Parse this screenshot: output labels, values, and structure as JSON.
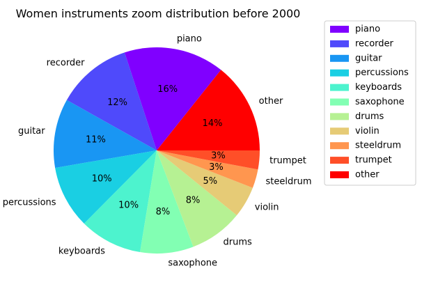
{
  "chart_data": {
    "type": "pie",
    "title": "Women instruments zoom distribution before 2000",
    "legend_position": "right",
    "start_angle_deg": 0,
    "direction": "counterclockwise",
    "slices": [
      {
        "label": "other",
        "pct_label": "14%",
        "value": 14.5,
        "color": "#ff0000"
      },
      {
        "label": "piano",
        "pct_label": "16%",
        "value": 16.0,
        "color": "#8000ff"
      },
      {
        "label": "recorder",
        "pct_label": "12%",
        "value": 12.0,
        "color": "#4f4afb"
      },
      {
        "label": "guitar",
        "pct_label": "11%",
        "value": 11.0,
        "color": "#1996f3"
      },
      {
        "label": "percussions",
        "pct_label": "10%",
        "value": 10.0,
        "color": "#1acfe3"
      },
      {
        "label": "keyboards",
        "pct_label": "10%",
        "value": 10.0,
        "color": "#4df3ce"
      },
      {
        "label": "saxophone",
        "pct_label": "8%",
        "value": 8.5,
        "color": "#82ffb3"
      },
      {
        "label": "drums",
        "pct_label": "8%",
        "value": 8.5,
        "color": "#b6f193"
      },
      {
        "label": "violin",
        "pct_label": "5%",
        "value": 5.0,
        "color": "#e6cb76"
      },
      {
        "label": "steeldrum",
        "pct_label": "3%",
        "value": 3.0,
        "color": "#ff964f"
      },
      {
        "label": "trumpet",
        "pct_label": "3%",
        "value": 3.0,
        "color": "#ff4f28"
      }
    ],
    "legend_order": [
      "piano",
      "recorder",
      "guitar",
      "percussions",
      "keyboards",
      "saxophone",
      "drums",
      "violin",
      "steeldrum",
      "trumpet",
      "other"
    ]
  }
}
